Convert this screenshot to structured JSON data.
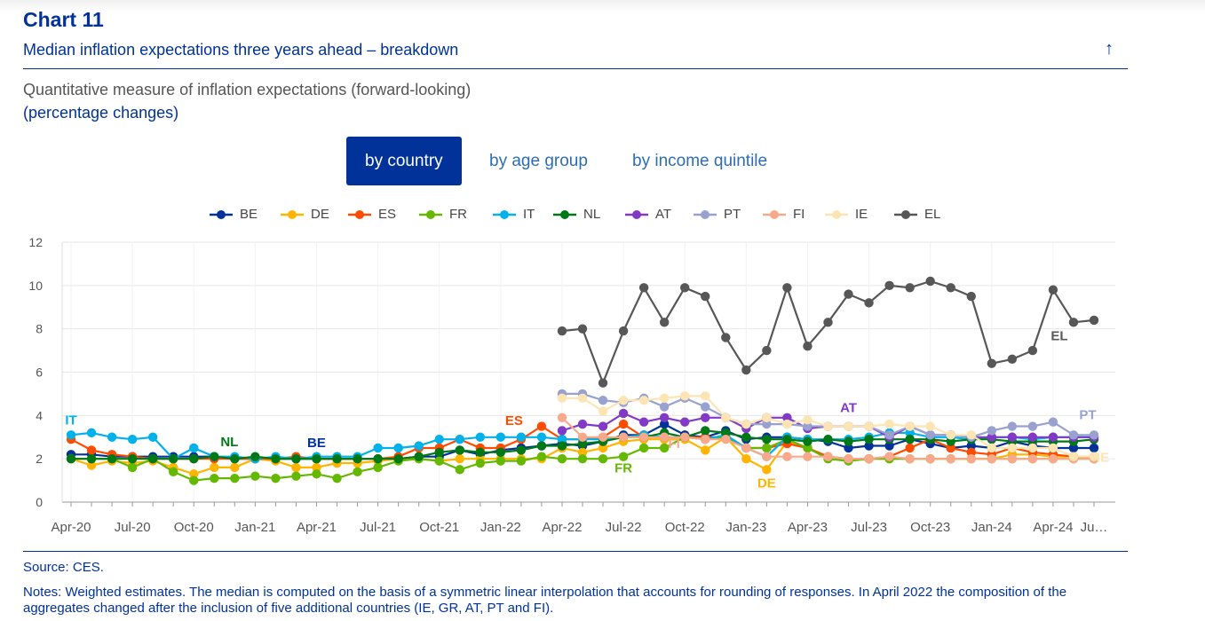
{
  "header": {
    "chart_number": "Chart 11",
    "title": "Median inflation expectations three years ahead – breakdown",
    "subtitle": "Quantitative measure of inflation expectations (forward-looking)",
    "unit": "(percentage changes)"
  },
  "tabs": [
    {
      "label": "by country",
      "active": true
    },
    {
      "label": "by age group",
      "active": false
    },
    {
      "label": "by income quintile",
      "active": false
    }
  ],
  "icons": {
    "collapse": "arrow-up-icon",
    "collapse_glyph": "↑"
  },
  "footer": {
    "source": "Source: CES.",
    "notes": "Notes: Weighted estimates. The median is computed on the basis of a symmetric linear interpolation that accounts for rounding of responses. In April 2022 the composition of the aggregates changed after the inclusion of five additional countries (IE, GR, AT, PT and FI)."
  },
  "chart_data": {
    "type": "line",
    "title": "Median inflation expectations three years ahead – breakdown",
    "ylim": [
      0,
      12
    ],
    "yticks": [
      0,
      2,
      4,
      6,
      8,
      10,
      12
    ],
    "grid": true,
    "legend_position": "top-center",
    "x": [
      "Apr-20",
      "May-20",
      "Jun-20",
      "Jul-20",
      "Aug-20",
      "Sep-20",
      "Oct-20",
      "Nov-20",
      "Dec-20",
      "Jan-21",
      "Feb-21",
      "Mar-21",
      "Apr-21",
      "May-21",
      "Jun-21",
      "Jul-21",
      "Aug-21",
      "Sep-21",
      "Oct-21",
      "Nov-21",
      "Dec-21",
      "Jan-22",
      "Feb-22",
      "Mar-22",
      "Apr-22",
      "May-22",
      "Jun-22",
      "Jul-22",
      "Aug-22",
      "Sep-22",
      "Oct-22",
      "Nov-22",
      "Dec-22",
      "Jan-23",
      "Feb-23",
      "Mar-23",
      "Apr-23",
      "May-23",
      "Jun-23",
      "Jul-23",
      "Aug-23",
      "Sep-23",
      "Oct-23",
      "Nov-23",
      "Dec-23",
      "Jan-24",
      "Feb-24",
      "Mar-24",
      "Apr-24",
      "May-24",
      "Jun-24"
    ],
    "xtick_labels": [
      {
        "index": 0,
        "label": "Apr-20"
      },
      {
        "index": 3,
        "label": "Jul-20"
      },
      {
        "index": 6,
        "label": "Oct-20"
      },
      {
        "index": 9,
        "label": "Jan-21"
      },
      {
        "index": 12,
        "label": "Apr-21"
      },
      {
        "index": 15,
        "label": "Jul-21"
      },
      {
        "index": 18,
        "label": "Oct-21"
      },
      {
        "index": 21,
        "label": "Jan-22"
      },
      {
        "index": 24,
        "label": "Apr-22"
      },
      {
        "index": 27,
        "label": "Jul-22"
      },
      {
        "index": 30,
        "label": "Oct-22"
      },
      {
        "index": 33,
        "label": "Jan-23"
      },
      {
        "index": 36,
        "label": "Apr-23"
      },
      {
        "index": 39,
        "label": "Jul-23"
      },
      {
        "index": 42,
        "label": "Oct-23"
      },
      {
        "index": 45,
        "label": "Jan-24"
      },
      {
        "index": 48,
        "label": "Apr-24"
      },
      {
        "index": 50,
        "label": "Ju…"
      }
    ],
    "series": [
      {
        "name": "BE",
        "color": "#003299",
        "label": "BE",
        "label_index": 12,
        "values": [
          2.2,
          2.2,
          2.1,
          2.1,
          2.1,
          2.1,
          2.1,
          2.1,
          2.0,
          2.0,
          2.0,
          2.0,
          2.0,
          2.0,
          2.0,
          2.0,
          2.0,
          2.1,
          2.1,
          2.4,
          2.2,
          2.4,
          2.5,
          2.6,
          2.7,
          2.6,
          2.8,
          3.1,
          3.1,
          3.6,
          3.1,
          3.0,
          3.3,
          2.9,
          3.0,
          3.0,
          2.9,
          2.8,
          2.5,
          2.6,
          2.6,
          2.9,
          2.7,
          2.5,
          2.6,
          2.5,
          2.8,
          2.6,
          2.5,
          2.5,
          2.5
        ]
      },
      {
        "name": "DE",
        "color": "#ffb400",
        "label": "DE",
        "label_index": 34,
        "values": [
          2.0,
          1.7,
          1.9,
          1.8,
          1.9,
          1.6,
          1.3,
          1.6,
          1.6,
          2.0,
          1.9,
          1.6,
          1.6,
          1.8,
          1.8,
          1.9,
          2.0,
          2.0,
          1.9,
          2.0,
          2.0,
          2.0,
          2.0,
          2.0,
          2.5,
          2.3,
          2.5,
          2.8,
          2.9,
          2.9,
          2.9,
          2.4,
          3.0,
          2.0,
          1.5,
          2.8,
          2.5,
          2.1,
          2.0,
          2.0,
          2.0,
          2.0,
          2.0,
          2.0,
          2.0,
          2.0,
          2.2,
          2.2,
          2.1,
          2.1,
          2.1
        ]
      },
      {
        "name": "ES",
        "color": "#ff4b00",
        "label": "ES",
        "label_index": 22,
        "values": [
          2.9,
          2.4,
          2.2,
          2.1,
          2.0,
          2.0,
          2.0,
          2.0,
          2.0,
          2.0,
          2.0,
          2.1,
          2.0,
          2.0,
          2.0,
          2.0,
          2.1,
          2.5,
          2.5,
          2.9,
          2.5,
          2.5,
          2.9,
          3.5,
          2.9,
          2.9,
          3.0,
          3.6,
          3.0,
          3.0,
          3.0,
          3.0,
          3.0,
          2.5,
          2.5,
          2.7,
          2.5,
          2.1,
          2.0,
          2.0,
          2.1,
          2.5,
          2.9,
          2.5,
          2.3,
          2.2,
          2.5,
          2.3,
          2.2,
          2.1,
          2.0
        ]
      },
      {
        "name": "FR",
        "color": "#65b800",
        "label": "FR",
        "label_index": 27,
        "values": [
          2.0,
          2.0,
          2.0,
          1.6,
          2.0,
          1.4,
          1.0,
          1.1,
          1.1,
          1.2,
          1.1,
          1.2,
          1.3,
          1.1,
          1.4,
          1.6,
          1.9,
          2.0,
          1.9,
          1.5,
          1.8,
          1.9,
          1.9,
          2.1,
          2.0,
          2.0,
          2.0,
          2.1,
          2.5,
          2.5,
          3.0,
          2.9,
          3.0,
          2.5,
          2.5,
          2.9,
          2.5,
          2.0,
          1.9,
          2.0,
          2.0,
          2.0,
          2.0,
          2.0,
          2.0,
          2.0,
          2.0,
          2.0,
          2.0,
          2.0,
          2.0
        ]
      },
      {
        "name": "IT",
        "color": "#00b1ea",
        "label": "IT",
        "label_index": 0,
        "values": [
          3.1,
          3.2,
          3.0,
          2.9,
          3.0,
          2.0,
          2.5,
          2.1,
          2.1,
          2.0,
          2.1,
          2.0,
          2.1,
          2.1,
          2.1,
          2.5,
          2.5,
          2.6,
          2.9,
          2.9,
          3.0,
          3.0,
          3.0,
          3.0,
          2.9,
          2.9,
          2.9,
          3.0,
          3.1,
          3.0,
          3.0,
          2.9,
          3.1,
          2.5,
          2.1,
          3.0,
          2.9,
          2.9,
          2.9,
          3.0,
          3.2,
          3.2,
          3.0,
          3.0,
          2.9,
          3.0,
          3.0,
          2.9,
          3.0,
          3.0,
          3.0
        ]
      },
      {
        "name": "NL",
        "color": "#007816",
        "label": "NL",
        "label_index": 8,
        "values": [
          2.0,
          2.0,
          2.0,
          2.0,
          2.0,
          2.0,
          2.0,
          2.1,
          2.0,
          2.1,
          2.0,
          2.0,
          2.0,
          2.0,
          2.0,
          2.0,
          2.0,
          2.1,
          2.3,
          2.4,
          2.3,
          2.3,
          2.4,
          2.6,
          2.6,
          2.7,
          2.8,
          3.0,
          3.0,
          3.2,
          3.0,
          3.3,
          3.2,
          3.0,
          2.9,
          2.9,
          2.8,
          2.9,
          2.8,
          2.9,
          2.9,
          2.9,
          2.9,
          2.8,
          2.9,
          2.9,
          2.8,
          2.8,
          2.8,
          2.8,
          2.9
        ]
      },
      {
        "name": "AT",
        "color": "#8139c6",
        "label": "AT",
        "label_index": 38,
        "values": [
          null,
          null,
          null,
          null,
          null,
          null,
          null,
          null,
          null,
          null,
          null,
          null,
          null,
          null,
          null,
          null,
          null,
          null,
          null,
          null,
          null,
          null,
          null,
          null,
          3.3,
          3.6,
          3.5,
          4.1,
          3.7,
          3.9,
          3.7,
          3.9,
          3.9,
          3.4,
          3.9,
          3.9,
          3.4,
          3.5,
          3.5,
          3.5,
          3.0,
          3.5,
          3.1,
          3.1,
          3.0,
          3.0,
          3.0,
          3.0,
          3.0,
          3.0,
          3.0
        ]
      },
      {
        "name": "PT",
        "color": "#98a1d0",
        "label": "PT",
        "label_index": 49,
        "values": [
          null,
          null,
          null,
          null,
          null,
          null,
          null,
          null,
          null,
          null,
          null,
          null,
          null,
          null,
          null,
          null,
          null,
          null,
          null,
          null,
          null,
          null,
          null,
          null,
          5.0,
          5.0,
          4.7,
          4.6,
          4.8,
          4.4,
          4.8,
          4.4,
          3.9,
          3.6,
          3.6,
          3.6,
          3.5,
          3.5,
          3.5,
          3.5,
          3.1,
          3.5,
          3.1,
          3.1,
          3.0,
          3.3,
          3.5,
          3.5,
          3.7,
          3.1,
          3.1
        ]
      },
      {
        "name": "FI",
        "color": "#f9a98b",
        "label": "FI",
        "label_index": 30,
        "values": [
          null,
          null,
          null,
          null,
          null,
          null,
          null,
          null,
          null,
          null,
          null,
          null,
          null,
          null,
          null,
          null,
          null,
          null,
          null,
          null,
          null,
          null,
          null,
          null,
          3.9,
          3.0,
          3.0,
          3.0,
          3.0,
          3.0,
          3.0,
          2.9,
          2.9,
          2.5,
          2.1,
          2.1,
          2.1,
          2.1,
          2.0,
          2.0,
          2.1,
          2.0,
          2.0,
          2.0,
          2.0,
          2.0,
          2.0,
          2.0,
          2.0,
          2.0,
          2.0
        ]
      },
      {
        "name": "IE",
        "color": "#fde4b3",
        "label": "IE",
        "label_index": 50,
        "values": [
          null,
          null,
          null,
          null,
          null,
          null,
          null,
          null,
          null,
          null,
          null,
          null,
          null,
          null,
          null,
          null,
          null,
          null,
          null,
          null,
          null,
          null,
          null,
          null,
          4.8,
          4.8,
          4.2,
          4.7,
          4.7,
          4.8,
          4.9,
          4.9,
          3.9,
          3.6,
          3.9,
          3.6,
          3.8,
          3.5,
          3.5,
          3.5,
          3.6,
          3.5,
          3.5,
          3.1,
          3.1,
          2.5,
          2.5,
          2.5,
          2.5,
          2.1,
          2.1
        ]
      },
      {
        "name": "EL",
        "color": "#575757",
        "label": "EL",
        "label_index": 49,
        "values": [
          null,
          null,
          null,
          null,
          null,
          null,
          null,
          null,
          null,
          null,
          null,
          null,
          null,
          null,
          null,
          null,
          null,
          null,
          null,
          null,
          null,
          null,
          null,
          null,
          7.9,
          8.0,
          5.5,
          7.9,
          9.9,
          8.3,
          9.9,
          9.5,
          7.6,
          6.1,
          7.0,
          9.9,
          7.2,
          8.3,
          9.6,
          9.2,
          10.0,
          9.9,
          10.2,
          9.9,
          9.5,
          6.4,
          6.6,
          7.0,
          9.8,
          8.3,
          8.4
        ]
      }
    ]
  }
}
